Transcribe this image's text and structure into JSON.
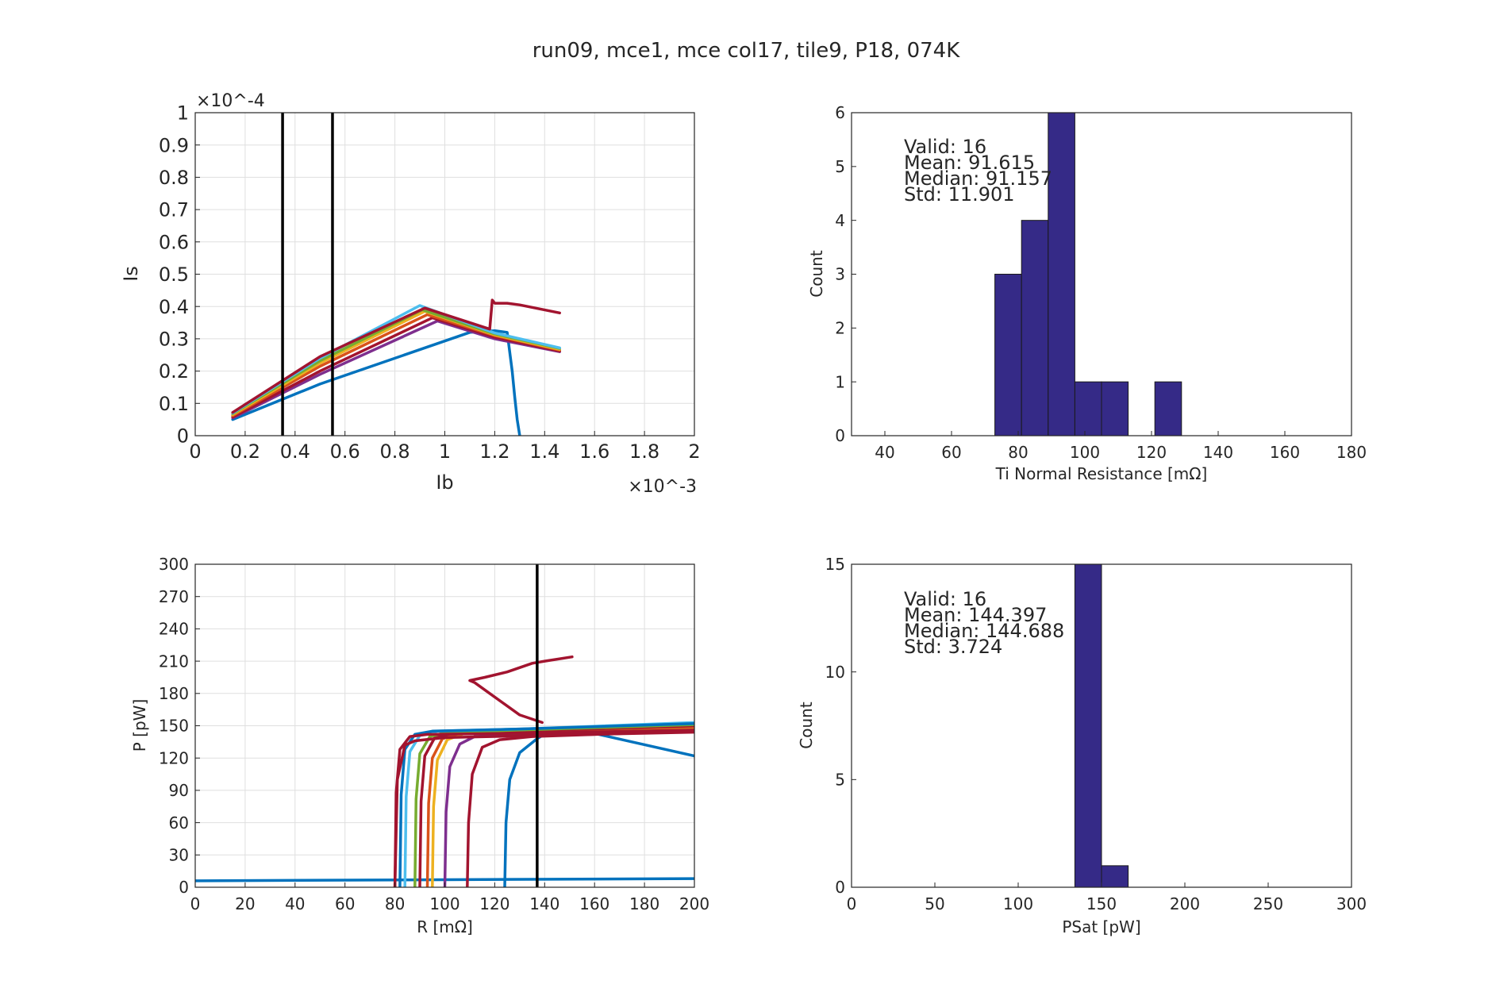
{
  "figure": {
    "title": "run09, mce1, mce col17, tile9, P18, 074K"
  },
  "colors": {
    "axis": "#262626",
    "grid": "#dfdfdf",
    "bar_fill": "#352a87",
    "bar_edge": "#1a1a1a",
    "vline": "#000000",
    "lines": [
      "#0072bd",
      "#a2142f",
      "#7e2f8e",
      "#d95319",
      "#edb120",
      "#77ac30",
      "#4dbeee"
    ]
  },
  "chart_data": [
    {
      "id": "iv",
      "type": "line",
      "title": "",
      "xlabel": "Ib",
      "ylabel": "Is",
      "x_exponent": "×10^-3",
      "y_exponent": "×10^-4",
      "xlim": [
        0,
        2
      ],
      "ylim": [
        0,
        1
      ],
      "xticks": [
        0,
        0.2,
        0.4,
        0.6,
        0.8,
        1,
        1.2,
        1.4,
        1.6,
        1.8,
        2
      ],
      "xticklabels": [
        "0",
        "0.2",
        "0.4",
        "0.6",
        "0.8",
        "1",
        "1.2",
        "1.4",
        "1.6",
        "1.8",
        "2"
      ],
      "yticks": [
        0,
        0.1,
        0.2,
        0.3,
        0.4,
        0.5,
        0.6,
        0.7,
        0.8,
        0.9,
        1
      ],
      "yticklabels": [
        "0",
        "0.1",
        "0.2",
        "0.3",
        "0.4",
        "0.5",
        "0.6",
        "0.7",
        "0.8",
        "0.9",
        "1"
      ],
      "grid": true,
      "vlines": [
        0.35,
        0.55
      ],
      "series": [
        {
          "color": "#0072bd",
          "x": [
            0.15,
            0.5,
            1.1,
            1.2,
            1.25,
            1.27,
            1.28,
            1.29,
            1.3
          ],
          "y": [
            0.05,
            0.16,
            0.32,
            0.325,
            0.32,
            0.2,
            0.12,
            0.05,
            0
          ]
        },
        {
          "color": "#7e2f8e",
          "x": [
            0.15,
            0.5,
            0.97,
            1.2,
            1.46
          ],
          "y": [
            0.055,
            0.19,
            0.355,
            0.3,
            0.26
          ]
        },
        {
          "color": "#a2142f",
          "x": [
            0.15,
            0.5,
            0.95,
            1.2,
            1.46
          ],
          "y": [
            0.058,
            0.2,
            0.365,
            0.305,
            0.262
          ]
        },
        {
          "color": "#d95319",
          "x": [
            0.15,
            0.5,
            0.93,
            1.2,
            1.46
          ],
          "y": [
            0.062,
            0.215,
            0.375,
            0.31,
            0.265
          ]
        },
        {
          "color": "#edb120",
          "x": [
            0.15,
            0.5,
            0.92,
            1.2,
            1.46
          ],
          "y": [
            0.065,
            0.225,
            0.385,
            0.312,
            0.267
          ]
        },
        {
          "color": "#77ac30",
          "x": [
            0.15,
            0.5,
            0.91,
            1.2,
            1.46
          ],
          "y": [
            0.068,
            0.232,
            0.39,
            0.315,
            0.27
          ]
        },
        {
          "color": "#4dbeee",
          "x": [
            0.15,
            0.5,
            0.9,
            1.2,
            1.46
          ],
          "y": [
            0.07,
            0.24,
            0.403,
            0.318,
            0.272
          ]
        },
        {
          "color": "#a2142f",
          "x": [
            0.15,
            0.5,
            0.92,
            1.18,
            1.19,
            1.2,
            1.25,
            1.3,
            1.46
          ],
          "y": [
            0.072,
            0.245,
            0.395,
            0.33,
            0.42,
            0.41,
            0.41,
            0.405,
            0.38
          ]
        }
      ]
    },
    {
      "id": "rn_hist",
      "type": "bar",
      "title": "",
      "xlabel": "Ti Normal Resistance [mΩ]",
      "ylabel": "Count",
      "xlim": [
        30,
        180
      ],
      "ylim": [
        0,
        6
      ],
      "xticks": [
        40,
        60,
        80,
        100,
        120,
        140,
        160,
        180
      ],
      "xticklabels": [
        "40",
        "60",
        "80",
        "100",
        "120",
        "140",
        "160",
        "180"
      ],
      "yticks": [
        0,
        1,
        2,
        3,
        4,
        5,
        6
      ],
      "yticklabels": [
        "0",
        "1",
        "2",
        "3",
        "4",
        "5",
        "6"
      ],
      "grid": false,
      "bin_edges": [
        73,
        81,
        89,
        97,
        105,
        113,
        121,
        129
      ],
      "counts": [
        3,
        4,
        6,
        1,
        1,
        0,
        1
      ],
      "stats": [
        "Valid: 16",
        "Mean: 91.615",
        "Median: 91.157",
        "Std: 11.901"
      ]
    },
    {
      "id": "pr",
      "type": "line",
      "title": "",
      "xlabel": "R [mΩ]",
      "ylabel": "P [pW]",
      "xlim": [
        0,
        200
      ],
      "ylim": [
        0,
        300
      ],
      "xticks": [
        0,
        20,
        40,
        60,
        80,
        100,
        120,
        140,
        160,
        180,
        200
      ],
      "xticklabels": [
        "0",
        "20",
        "40",
        "60",
        "80",
        "100",
        "120",
        "140",
        "160",
        "180",
        "200"
      ],
      "yticks": [
        0,
        30,
        60,
        90,
        120,
        150,
        180,
        210,
        240,
        270,
        300
      ],
      "yticklabels": [
        "0",
        "30",
        "60",
        "90",
        "120",
        "150",
        "180",
        "210",
        "240",
        "270",
        "300"
      ],
      "grid": true,
      "vlines": [
        137
      ],
      "series": [
        {
          "color": "#0072bd",
          "x": [
            0,
            200
          ],
          "y": [
            6,
            8
          ]
        },
        {
          "color": "#0072bd",
          "x": [
            124,
            124.5,
            126,
            130,
            137,
            142,
            150,
            200
          ],
          "y": [
            0,
            60,
            100,
            125,
            138,
            145,
            148,
            122
          ]
        },
        {
          "color": "#a2142f",
          "x": [
            109,
            109.5,
            111,
            115,
            122,
            135,
            200
          ],
          "y": [
            0,
            60,
            105,
            130,
            137,
            140,
            145
          ]
        },
        {
          "color": "#7e2f8e",
          "x": [
            100,
            100.5,
            102,
            106,
            112,
            130,
            200
          ],
          "y": [
            0,
            70,
            112,
            133,
            140,
            142,
            147
          ]
        },
        {
          "color": "#edb120",
          "x": [
            95,
            95.5,
            97,
            101,
            108,
            130,
            200
          ],
          "y": [
            0,
            75,
            118,
            137,
            143,
            144,
            148
          ]
        },
        {
          "color": "#d95319",
          "x": [
            93,
            93.5,
            95,
            99,
            106,
            130,
            200
          ],
          "y": [
            0,
            78,
            120,
            138,
            143,
            145,
            149
          ]
        },
        {
          "color": "#a2142f",
          "x": [
            90,
            90.5,
            92,
            96,
            103,
            130,
            200
          ],
          "y": [
            0,
            80,
            122,
            139,
            143,
            145,
            150
          ]
        },
        {
          "color": "#77ac30",
          "x": [
            88,
            88.5,
            90,
            94,
            101,
            130,
            200
          ],
          "y": [
            0,
            82,
            124,
            140,
            144,
            146,
            151
          ]
        },
        {
          "color": "#4dbeee",
          "x": [
            84,
            84.5,
            86,
            90,
            97,
            130,
            200
          ],
          "y": [
            0,
            84,
            126,
            141,
            145,
            147,
            153
          ]
        },
        {
          "color": "#0072bd",
          "x": [
            82,
            82.5,
            84,
            88,
            95,
            130,
            200
          ],
          "y": [
            0,
            86,
            128,
            142,
            145,
            147,
            152
          ]
        },
        {
          "color": "#a2142f",
          "x": [
            80,
            80.5,
            82,
            86,
            93,
            130,
            200
          ],
          "y": [
            0,
            88,
            128,
            140,
            142,
            143,
            146
          ]
        },
        {
          "color": "#a2142f",
          "x": [
            80,
            81,
            84,
            88,
            100,
            140,
            200
          ],
          "y": [
            0,
            100,
            132,
            136,
            139,
            141,
            144
          ]
        },
        {
          "color": "#a2142f",
          "x": [
            139,
            130,
            118,
            112,
            110,
            116,
            125,
            135,
            140,
            151
          ],
          "y": [
            153,
            160,
            180,
            190,
            192,
            195,
            200,
            208,
            210,
            214
          ]
        }
      ]
    },
    {
      "id": "psat_hist",
      "type": "bar",
      "title": "",
      "xlabel": "PSat [pW]",
      "ylabel": "Count",
      "xlim": [
        0,
        300
      ],
      "ylim": [
        0,
        15
      ],
      "xticks": [
        0,
        50,
        100,
        150,
        200,
        250,
        300
      ],
      "xticklabels": [
        "0",
        "50",
        "100",
        "150",
        "200",
        "250",
        "300"
      ],
      "yticks": [
        0,
        5,
        10,
        15
      ],
      "yticklabels": [
        "0",
        "5",
        "10",
        "15"
      ],
      "grid": false,
      "bin_edges": [
        134,
        150,
        166
      ],
      "counts": [
        15,
        1
      ],
      "stats": [
        "Valid: 16",
        "Mean: 144.397",
        "Median: 144.688",
        "Std: 3.724"
      ]
    }
  ]
}
